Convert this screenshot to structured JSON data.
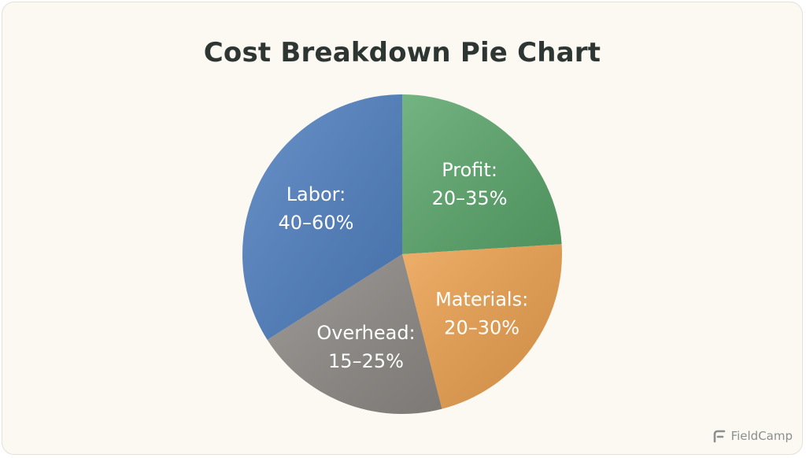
{
  "chart_data": {
    "type": "pie",
    "title": "Cost Breakdown Pie Chart",
    "slices": [
      {
        "label": "Profit:",
        "value_text": "20–35%",
        "share": 0.24,
        "color": "#5aa66b"
      },
      {
        "label": "Materials:",
        "value_text": "20–30%",
        "share": 0.22,
        "color": "#eba04e"
      },
      {
        "label": "Overhead:",
        "value_text": "15–25%",
        "share": 0.2,
        "color": "#8e8a86"
      },
      {
        "label": "Labor:",
        "value_text": "40–60%",
        "share": 0.34,
        "color": "#4f7fc0"
      }
    ]
  },
  "branding": {
    "name": "FieldCamp",
    "icon": "fieldcamp-logo-icon",
    "color": "#8b8f8d"
  }
}
